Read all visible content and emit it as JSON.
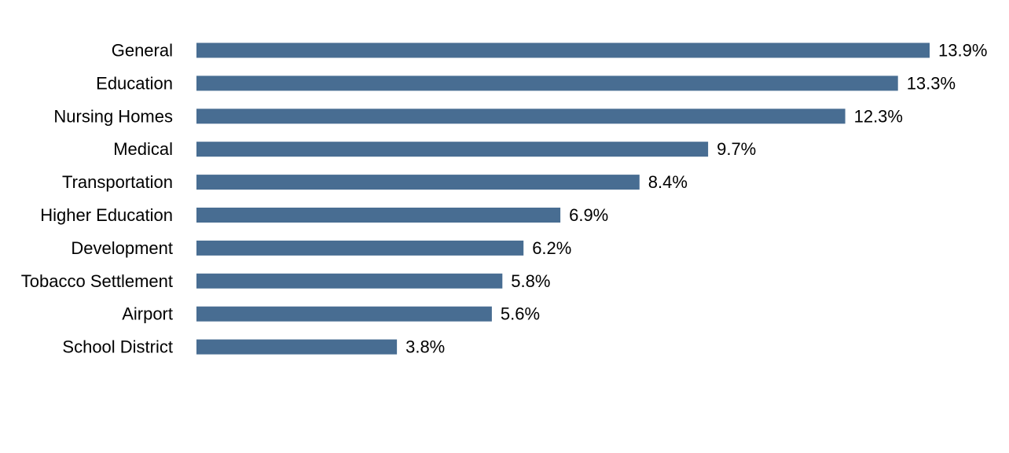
{
  "chart_data": {
    "type": "bar",
    "orientation": "horizontal",
    "title": "",
    "xlabel": "",
    "ylabel": "",
    "categories": [
      "General",
      "Education",
      "Nursing Homes",
      "Medical",
      "Transportation",
      "Higher Education",
      "Development",
      "Tobacco Settlement",
      "Airport",
      "School District"
    ],
    "values": [
      13.9,
      13.3,
      12.3,
      9.7,
      8.4,
      6.9,
      6.2,
      5.8,
      5.6,
      3.8
    ],
    "value_labels": [
      "13.9%",
      "13.3%",
      "12.3%",
      "9.7%",
      "8.4%",
      "6.9%",
      "6.2%",
      "5.8%",
      "5.6%",
      "3.8%"
    ],
    "xlim": [
      0,
      13.9
    ],
    "grid": false,
    "legend": "none",
    "bar_color": "#486d92"
  }
}
